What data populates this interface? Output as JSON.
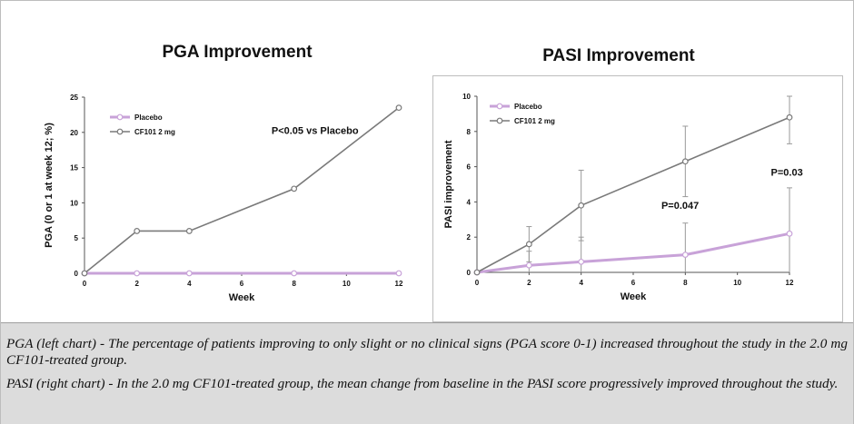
{
  "chart_data": [
    {
      "type": "line",
      "title": "PGA Improvement",
      "xlabel": "Week",
      "ylabel": "PGA (0 or 1 at week 12; %)",
      "x": [
        0,
        2,
        4,
        8,
        12
      ],
      "xlim": [
        0,
        12
      ],
      "ylim": [
        0,
        25
      ],
      "xticks": [
        "0",
        "2",
        "4",
        "6",
        "8",
        "10",
        "12"
      ],
      "yticks": [
        "0",
        "5",
        "10",
        "15",
        "20",
        "25"
      ],
      "series": [
        {
          "name": "Placebo",
          "color": "#c8a2d8",
          "values": [
            0,
            0,
            0,
            0,
            0
          ]
        },
        {
          "name": "CF101 2 mg",
          "color": "#7a7a7a",
          "values": [
            0,
            6,
            6,
            12,
            23.5
          ]
        }
      ],
      "annotations": [
        {
          "text": "P<0.05 vs Placebo",
          "x": 8.8,
          "y": 19.8
        }
      ]
    },
    {
      "type": "line",
      "title": "PASI Improvement",
      "xlabel": "Week",
      "ylabel": "PASI improvement",
      "x": [
        0,
        2,
        4,
        8,
        12
      ],
      "xlim": [
        0,
        12
      ],
      "ylim": [
        0,
        10
      ],
      "xticks": [
        "0",
        "2",
        "4",
        "6",
        "8",
        "10",
        "12"
      ],
      "yticks": [
        "0",
        "2",
        "4",
        "6",
        "8",
        "10"
      ],
      "series": [
        {
          "name": "Placebo",
          "color": "#c8a2d8",
          "values": [
            0,
            0.4,
            0.6,
            1.0,
            2.2
          ],
          "error": [
            0,
            0.8,
            1.4,
            1.8,
            2.6
          ]
        },
        {
          "name": "CF101 2 mg",
          "color": "#7a7a7a",
          "values": [
            0,
            1.6,
            3.8,
            6.3,
            8.8
          ],
          "error": [
            0,
            1.0,
            2.0,
            2.0,
            1.5
          ]
        }
      ],
      "annotations": [
        {
          "text": "P=0.047",
          "x": 7.8,
          "y": 3.6
        },
        {
          "text": "P=0.03",
          "x": 11.9,
          "y": 5.5
        }
      ]
    }
  ],
  "caption": {
    "pga": "PGA   (left chart) - The percentage of patients improving to only slight or no clinical signs (PGA score 0-1) increased throughout the study in the 2.0 mg CF101-treated group.",
    "pasi": "PASI (right chart) - In the 2.0 mg CF101-treated group, the mean change from baseline in the PASI score progressively improved throughout the study."
  },
  "colors": {
    "axis": "#555555",
    "caption_bg": "#dcdcdc"
  }
}
